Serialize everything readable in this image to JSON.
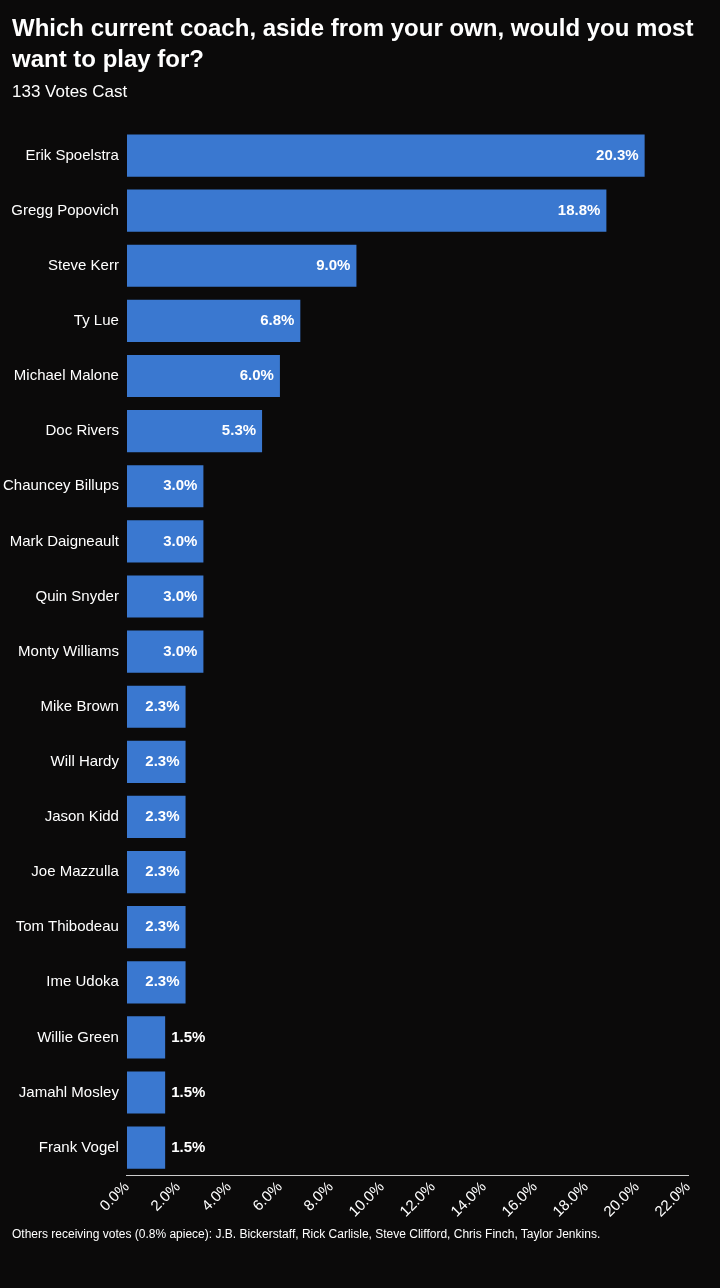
{
  "chart_data": {
    "type": "bar",
    "orientation": "horizontal",
    "title": "Which current coach, aside from your own, would you most want to play for?",
    "subtitle": "133 Votes Cast",
    "categories": [
      "Erik Spoelstra",
      "Gregg Popovich",
      "Steve Kerr",
      "Ty Lue",
      "Michael Malone",
      "Doc Rivers",
      "Chauncey Billups",
      "Mark Daigneault",
      "Quin Snyder",
      "Monty Williams",
      "Mike Brown",
      "Will Hardy",
      "Jason Kidd",
      "Joe Mazzulla",
      "Tom Thibodeau",
      "Ime Udoka",
      "Willie Green",
      "Jamahl Mosley",
      "Frank Vogel"
    ],
    "values": [
      20.3,
      18.8,
      9.0,
      6.8,
      6.0,
      5.3,
      3.0,
      3.0,
      3.0,
      3.0,
      2.3,
      2.3,
      2.3,
      2.3,
      2.3,
      2.3,
      1.5,
      1.5,
      1.5
    ],
    "value_labels": [
      "20.3%",
      "18.8%",
      "9.0%",
      "6.8%",
      "6.0%",
      "5.3%",
      "3.0%",
      "3.0%",
      "3.0%",
      "3.0%",
      "2.3%",
      "2.3%",
      "2.3%",
      "2.3%",
      "2.3%",
      "2.3%",
      "1.5%",
      "1.5%",
      "1.5%"
    ],
    "color": "#3a78d0",
    "xlim": [
      0,
      22
    ],
    "xticks": [
      {
        "value": 0,
        "label": "0.0%"
      },
      {
        "value": 2,
        "label": "2.0%"
      },
      {
        "value": 4,
        "label": "4.0%"
      },
      {
        "value": 6,
        "label": "6.0%"
      },
      {
        "value": 8,
        "label": "8.0%"
      },
      {
        "value": 10,
        "label": "10.0%"
      },
      {
        "value": 12,
        "label": "12.0%"
      },
      {
        "value": 14,
        "label": "14.0%"
      },
      {
        "value": 16,
        "label": "16.0%"
      },
      {
        "value": 18,
        "label": "18.0%"
      },
      {
        "value": 20,
        "label": "20.0%"
      },
      {
        "value": 22,
        "label": "22.0%"
      }
    ],
    "grid": false,
    "legend": false,
    "annotations": [
      "Others receiving votes (0.8% apiece): J.B. Bickerstaff, Rick Carlisle, Steve Clifford, Chris Finch, Taylor Jenkins."
    ]
  }
}
